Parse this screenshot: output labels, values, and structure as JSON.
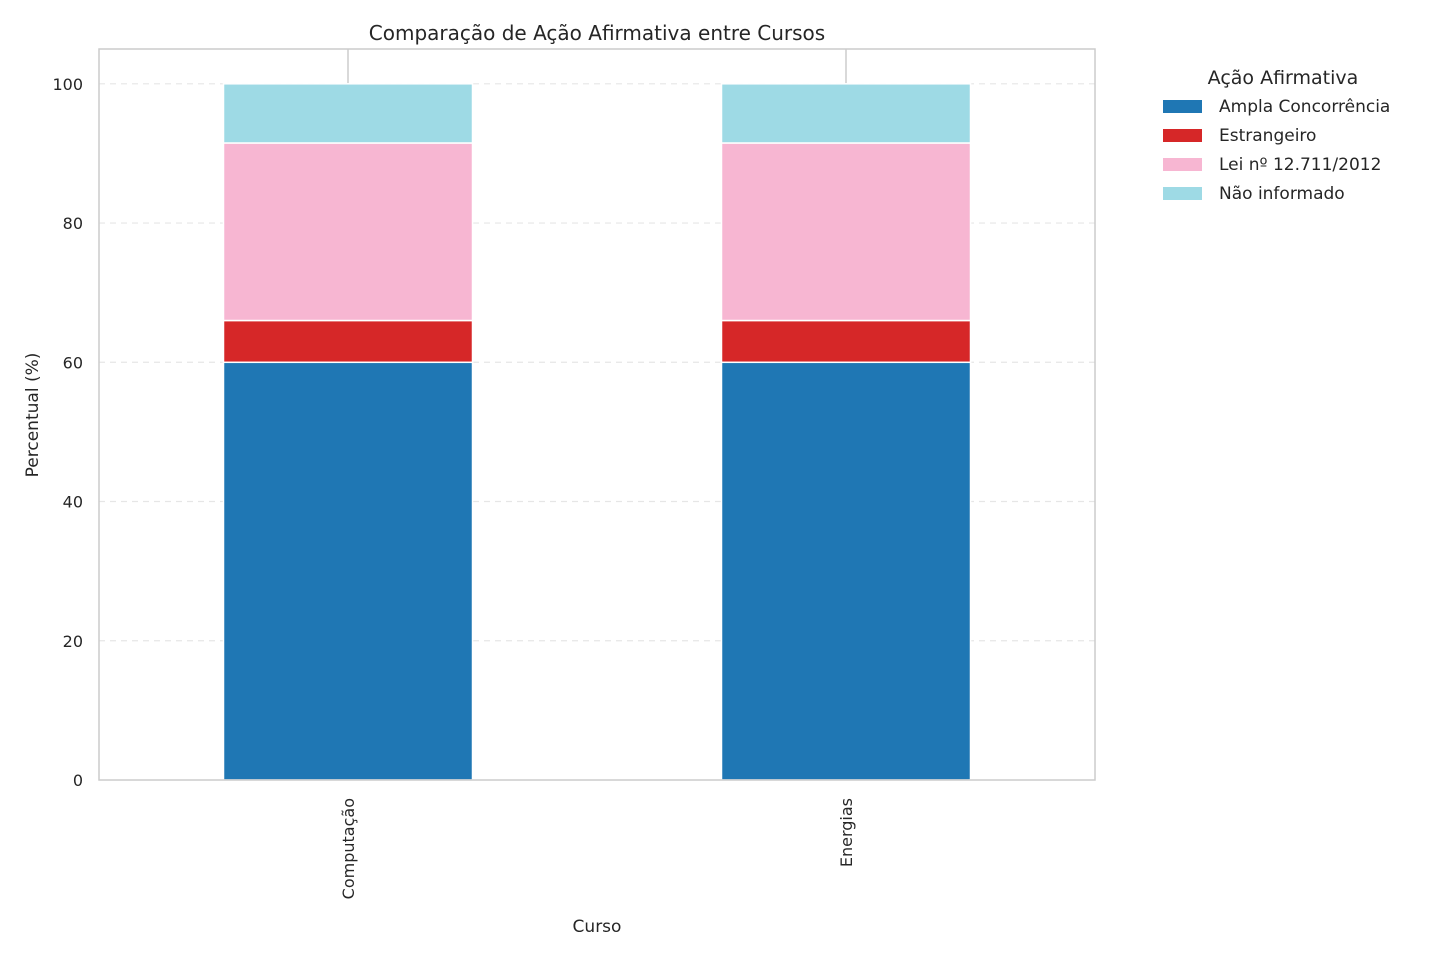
{
  "chart_data": {
    "type": "bar",
    "stacked": true,
    "title": "Comparação de Ação Afirmativa entre Cursos",
    "xlabel": "Curso",
    "ylabel": "Percentual (%)",
    "ylim": [
      0,
      105
    ],
    "yticks": [
      0,
      20,
      40,
      60,
      80,
      100
    ],
    "grid": true,
    "legend_placement": "outside-top-right",
    "legend_title": "Ação Afirmativa",
    "categories": [
      "Computação",
      "Energias"
    ],
    "series": [
      {
        "name": "Ampla Concorrência",
        "color": "#1f77b4",
        "values": [
          60,
          60
        ]
      },
      {
        "name": "Estrangeiro",
        "color": "#d62728",
        "values": [
          6,
          6
        ]
      },
      {
        "name": "Lei nº 12.711/2012",
        "color": "#f7b6d2",
        "values": [
          25.5,
          25.5
        ]
      },
      {
        "name": "Não informado",
        "color": "#9edae5",
        "values": [
          8.5,
          8.5
        ]
      }
    ]
  }
}
